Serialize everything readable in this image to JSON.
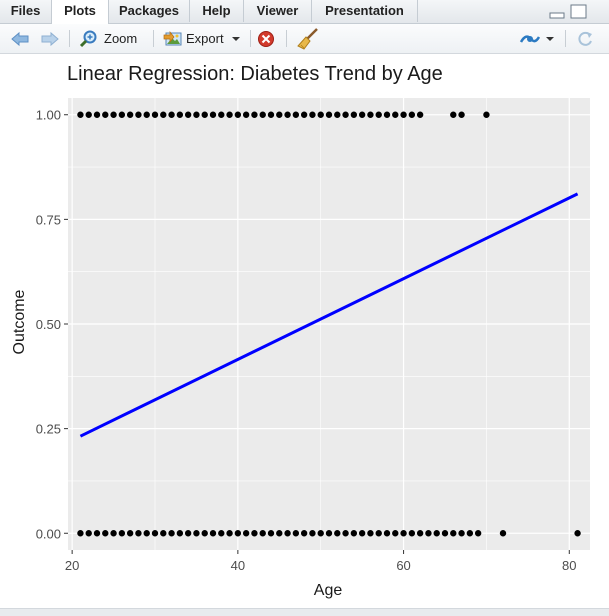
{
  "tabs": [
    {
      "label": "Files",
      "active": false
    },
    {
      "label": "Plots",
      "active": true
    },
    {
      "label": "Packages",
      "active": false
    },
    {
      "label": "Help",
      "active": false
    },
    {
      "label": "Viewer",
      "active": false
    },
    {
      "label": "Presentation",
      "active": false
    }
  ],
  "toolbar": {
    "zoom_label": "Zoom",
    "export_label": "Export"
  },
  "colors": {
    "panel_bg": "#ebebeb",
    "regression_line": "#0000ff",
    "points": "#000000",
    "grid": "#ffffff"
  },
  "chart_data": {
    "type": "scatter",
    "title": "Linear Regression: Diabetes Trend by Age",
    "xlabel": "Age",
    "ylabel": "Outcome",
    "xlim": [
      19.5,
      82.5
    ],
    "ylim": [
      -0.04,
      1.04
    ],
    "x_ticks": [
      20,
      40,
      60,
      80
    ],
    "x_tick_labels": [
      "20",
      "40",
      "60",
      "80"
    ],
    "y_ticks": [
      0,
      0.25,
      0.5,
      0.75,
      1.0
    ],
    "y_tick_labels": [
      "0.00",
      "0.25",
      "0.50",
      "0.75",
      "1.00"
    ],
    "grid": true,
    "points": {
      "outcome_1_ages": [
        21,
        22,
        23,
        24,
        25,
        26,
        27,
        28,
        29,
        30,
        31,
        32,
        33,
        34,
        35,
        36,
        37,
        38,
        39,
        40,
        41,
        42,
        43,
        44,
        45,
        46,
        47,
        48,
        49,
        50,
        51,
        52,
        53,
        54,
        55,
        56,
        57,
        58,
        59,
        60,
        61,
        62,
        66,
        67,
        70
      ],
      "outcome_0_ages": [
        21,
        22,
        23,
        24,
        25,
        26,
        27,
        28,
        29,
        30,
        31,
        32,
        33,
        34,
        35,
        36,
        37,
        38,
        39,
        40,
        41,
        42,
        43,
        44,
        45,
        46,
        47,
        48,
        49,
        50,
        51,
        52,
        53,
        54,
        55,
        56,
        57,
        58,
        59,
        60,
        61,
        62,
        63,
        64,
        65,
        66,
        67,
        68,
        69,
        72,
        81
      ]
    },
    "regression_line": {
      "x": [
        21,
        81
      ],
      "y": [
        0.232,
        0.811
      ]
    }
  }
}
